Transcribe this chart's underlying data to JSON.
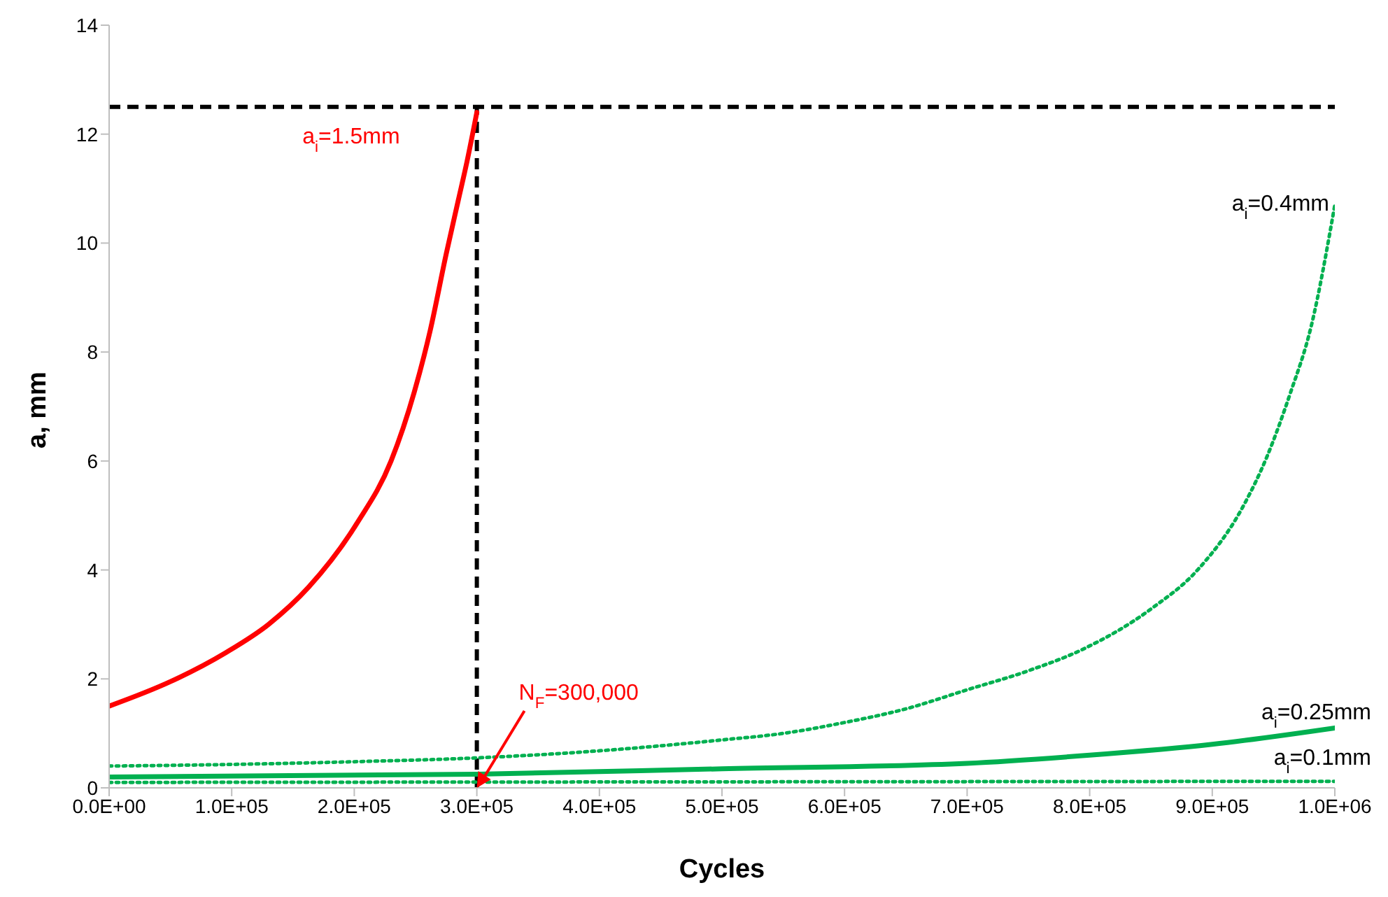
{
  "chart_data": {
    "type": "line",
    "xlabel": "Cycles",
    "ylabel": "a, mm",
    "xlim": [
      0,
      1000000
    ],
    "ylim": [
      0,
      14
    ],
    "xticks": [
      {
        "value": 0,
        "label": "0.0E+00"
      },
      {
        "value": 100000,
        "label": "1.0E+05"
      },
      {
        "value": 200000,
        "label": "2.0E+05"
      },
      {
        "value": 300000,
        "label": "3.0E+05"
      },
      {
        "value": 400000,
        "label": "4.0E+05"
      },
      {
        "value": 500000,
        "label": "5.0E+05"
      },
      {
        "value": 600000,
        "label": "6.0E+05"
      },
      {
        "value": 700000,
        "label": "7.0E+05"
      },
      {
        "value": 800000,
        "label": "8.0E+05"
      },
      {
        "value": 900000,
        "label": "9.0E+05"
      },
      {
        "value": 1000000,
        "label": "1.0E+06"
      }
    ],
    "yticks": [
      0,
      2,
      4,
      6,
      8,
      10,
      12,
      14
    ],
    "grid": false,
    "legend": false,
    "marker": "none",
    "series": [
      {
        "name": "a$_{i}$=1.5mm",
        "color": "#ff0000",
        "line_style": "solid",
        "x": [
          0,
          50000,
          95000,
          130000,
          163000,
          202000,
          230000,
          249000,
          262000,
          275000,
          285000,
          292000,
          300000
        ],
        "values": [
          1.5,
          1.95,
          2.48,
          3.0,
          3.69,
          4.85,
          6.0,
          7.27,
          8.4,
          9.8,
          10.8,
          11.5,
          12.4
        ]
      },
      {
        "name": "a$_{i}$=0.4mm",
        "color": "#00b050",
        "line_style": "dotted",
        "x": [
          0,
          100000,
          200000,
          300000,
          400000,
          500000,
          550000,
          600000,
          650000,
          700000,
          750000,
          795000,
          851000,
          888000,
          925000,
          945000,
          963000,
          981000,
          1000000
        ],
        "values": [
          0.4,
          0.43,
          0.48,
          0.55,
          0.68,
          0.88,
          1.0,
          1.2,
          1.45,
          1.8,
          2.15,
          2.55,
          3.3,
          4.0,
          5.16,
          6.1,
          7.2,
          8.5,
          10.7
        ]
      },
      {
        "name": "a$_{i}$=0.25mm",
        "color": "#00b050",
        "line_style": "solid",
        "x": [
          0,
          300000,
          500000,
          700000,
          800000,
          900000,
          1000000
        ],
        "values": [
          0.2,
          0.25,
          0.35,
          0.45,
          0.6,
          0.8,
          1.1
        ]
      },
      {
        "name": "a$_{i}$=0.1mm",
        "color": "#00b050",
        "line_style": "dotted",
        "x": [
          0,
          1000000
        ],
        "values": [
          0.1,
          0.12
        ]
      }
    ],
    "ref_lines": [
      {
        "axis": "y",
        "value": 12.5,
        "color": "#000000",
        "line_style": "dashed"
      },
      {
        "axis": "x",
        "value": 300000,
        "color": "#000000",
        "line_style": "dashed"
      }
    ],
    "annotations": [
      {
        "text": "N$_{F}$=300,000",
        "x": 300000,
        "y": 0
      }
    ]
  }
}
